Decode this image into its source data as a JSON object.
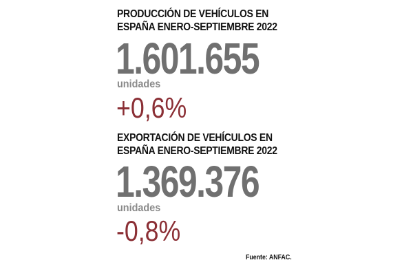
{
  "produccion": {
    "title_line1": "PRODUCCIÓN DE VEHÍCULOS EN",
    "title_line2": "ESPAÑA ENERO-SEPTIEMBRE 2022",
    "value": "1.601.655",
    "units": "unidades",
    "change": "+0,6%"
  },
  "exportacion": {
    "title_line1": "EXPORTACIÓN DE VEHÍCULOS EN",
    "title_line2": "ESPAÑA ENERO-SEPTIEMBRE 2022",
    "value": "1.369.376",
    "units": "unidades",
    "change": "-0,8%"
  },
  "source": "Fuente: ANFAC.",
  "colors": {
    "heading": "#111111",
    "number": "#707070",
    "units": "#8a8a8a",
    "change": "#8b2f35"
  }
}
